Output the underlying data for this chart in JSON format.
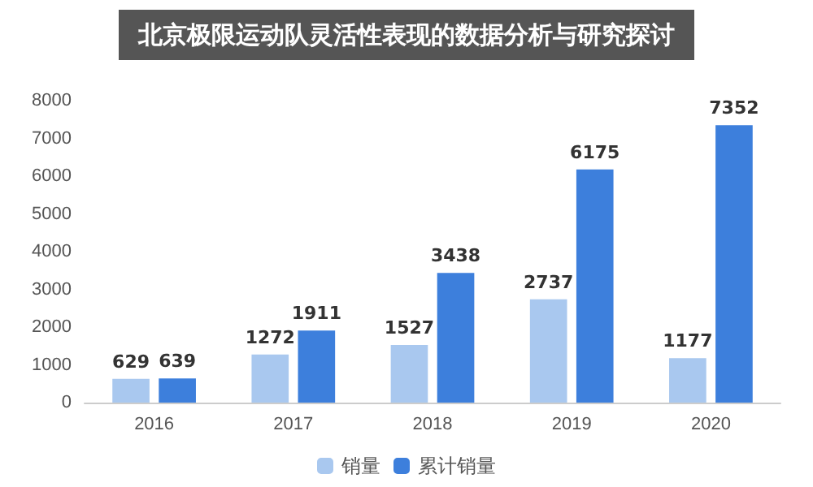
{
  "chart_data": {
    "type": "bar",
    "title": "北京极限运动队灵活性表现的数据分析与研究探讨",
    "categories": [
      "2016",
      "2017",
      "2018",
      "2019",
      "2020"
    ],
    "series": [
      {
        "name": "销量",
        "color": "#a9c8ef",
        "values": [
          629,
          1272,
          1527,
          2737,
          1177
        ]
      },
      {
        "name": "累计销量",
        "color": "#3d7fdc",
        "values": [
          639,
          1911,
          3438,
          6175,
          7352
        ]
      }
    ],
    "ylim": [
      0,
      8000
    ],
    "yticks": [
      0,
      1000,
      2000,
      3000,
      4000,
      5000,
      6000,
      7000,
      8000
    ],
    "grid": false,
    "legend": "bottom",
    "data_labels": true
  }
}
